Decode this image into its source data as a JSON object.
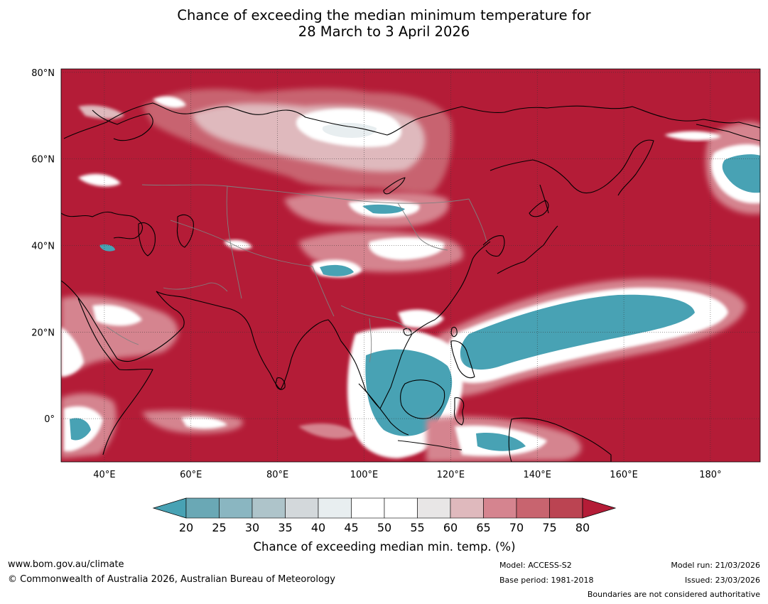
{
  "title": {
    "line1": "Chance of exceeding the median minimum temperature for",
    "line2": "28 March to 3 April 2026"
  },
  "map": {
    "lat_labels": [
      "80°N",
      "60°N",
      "40°N",
      "20°N",
      "0°"
    ],
    "lon_labels": [
      "40°E",
      "60°E",
      "80°E",
      "100°E",
      "120°E",
      "140°E",
      "160°E",
      "180°"
    ],
    "colors": {
      "high": "#b41c37",
      "mid_high": "#d5848f",
      "pale_pink": "#e8b9bf",
      "neutral": "#ffffff",
      "light_grey": "#d3d8db",
      "low": "#48a2b4",
      "coast": "#000000",
      "border": "#808080"
    }
  },
  "colorbar": {
    "ticks": [
      "20",
      "25",
      "30",
      "35",
      "40",
      "45",
      "50",
      "55",
      "60",
      "65",
      "70",
      "75",
      "80"
    ],
    "label": "Chance of exceeding median min. temp. (%)",
    "colors": [
      "#48a2b4",
      "#6aa8b5",
      "#8ab6c1",
      "#aec4ca",
      "#d3d8db",
      "#e8eef0",
      "#ffffff",
      "#ffffff",
      "#e8e6e6",
      "#dfb9bd",
      "#d5848f",
      "#c8646f",
      "#bb4452",
      "#b41c37"
    ]
  },
  "footer": {
    "website": "www.bom.gov.au/climate",
    "copyright": "© Commonwealth of Australia 2026, Australian Bureau of Meteorology",
    "model": "Model: ACCESS-S2",
    "base_period": "Base period: 1981-2018",
    "model_run": "Model run: 21/03/2026",
    "issued": "Issued: 23/03/2026",
    "boundaries": "Boundaries are not considered authoritative"
  }
}
